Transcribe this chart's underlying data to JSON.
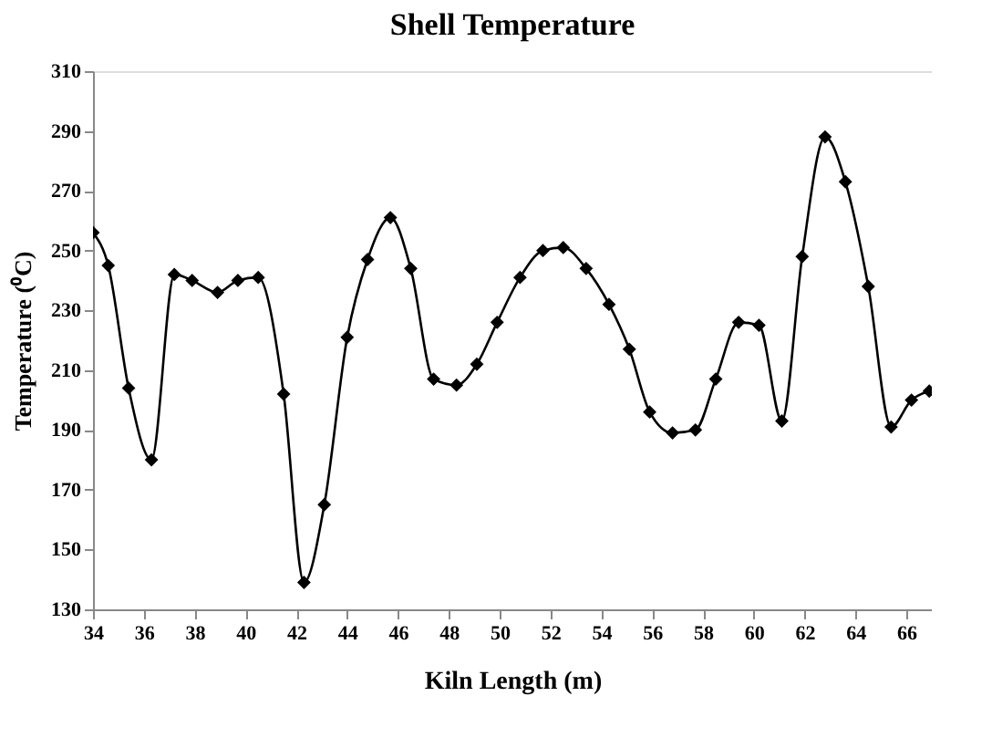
{
  "chart_data": {
    "type": "line",
    "title": "Shell Temperature",
    "xlabel": "Kiln Length (m)",
    "ylabel": "Temperature (⁰C)",
    "x": [
      34,
      34.6,
      35.4,
      36.3,
      37.2,
      37.9,
      38.9,
      39.7,
      40.5,
      41.5,
      42.3,
      43.1,
      44.0,
      44.8,
      45.7,
      46.5,
      47.4,
      48.3,
      49.1,
      49.9,
      50.8,
      51.7,
      52.5,
      53.4,
      54.3,
      55.1,
      55.9,
      56.8,
      57.7,
      58.5,
      59.4,
      60.2,
      61.1,
      61.9,
      62.8,
      63.6,
      64.5,
      65.4,
      66.2,
      66.9
    ],
    "series": [
      {
        "color": "#000000",
        "values": [
          256,
          245,
          204,
          180,
          242,
          240,
          236,
          240,
          241,
          202,
          139,
          165,
          221,
          247,
          261,
          244,
          207,
          205,
          212,
          226,
          241,
          250,
          251,
          244,
          232,
          217,
          196,
          189,
          190,
          207,
          226,
          225,
          193,
          248,
          288,
          273,
          238,
          191,
          200,
          203
        ]
      }
    ],
    "xlim": [
      34,
      67
    ],
    "xticks": [
      34,
      36,
      38,
      40,
      42,
      44,
      46,
      48,
      50,
      52,
      54,
      56,
      58,
      60,
      62,
      64,
      66
    ],
    "ylim": [
      130,
      310
    ],
    "yticks": [
      130,
      150,
      170,
      190,
      210,
      230,
      250,
      270,
      290,
      310
    ],
    "marker": "diamond",
    "grid": false,
    "legend": false
  }
}
